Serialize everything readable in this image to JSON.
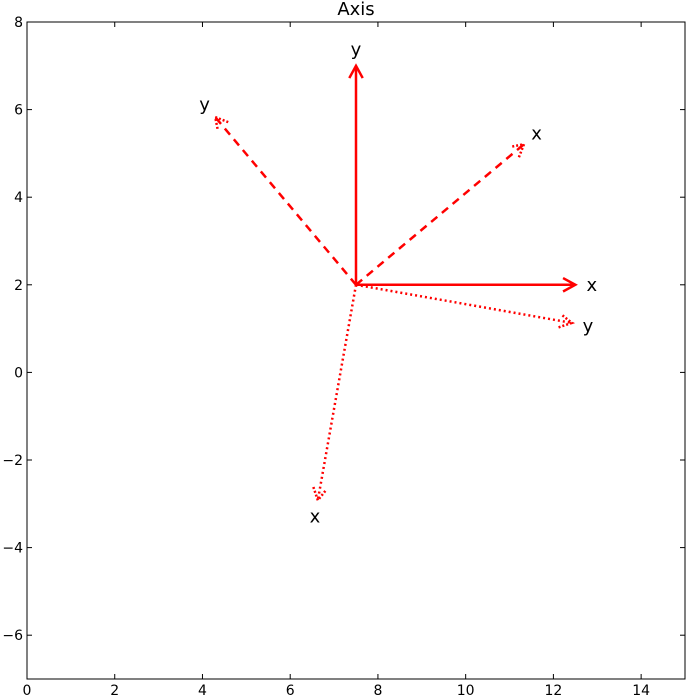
{
  "chart_data": {
    "type": "line",
    "title": "Axis",
    "xlabel": "",
    "ylabel": "",
    "xlim": [
      0,
      15
    ],
    "ylim": [
      -7,
      8
    ],
    "xticks": [
      0,
      2,
      4,
      6,
      8,
      10,
      12,
      14
    ],
    "yticks": [
      -6,
      -4,
      -2,
      0,
      2,
      4,
      6,
      8
    ],
    "xtick_labels": [
      "0",
      "2",
      "4",
      "6",
      "8",
      "10",
      "12",
      "14"
    ],
    "ytick_labels": [
      "−6",
      "−4",
      "−2",
      "0",
      "2",
      "4",
      "6",
      "8"
    ],
    "grid": false,
    "color": "#ff0000",
    "arrows": [
      {
        "frame": "solid",
        "axis": "x",
        "label": "x",
        "from": [
          7.5,
          2
        ],
        "to": [
          12.5,
          2
        ],
        "style": "solid"
      },
      {
        "frame": "solid",
        "axis": "y",
        "label": "y",
        "from": [
          7.5,
          2
        ],
        "to": [
          7.5,
          7
        ],
        "style": "solid"
      },
      {
        "frame": "rotated-40",
        "axis": "x",
        "label": "x",
        "from": [
          7.5,
          2
        ],
        "to": [
          11.33,
          5.21
        ],
        "style": "dashed"
      },
      {
        "frame": "rotated-40",
        "axis": "y",
        "label": "y",
        "from": [
          7.5,
          2
        ],
        "to": [
          4.29,
          5.83
        ],
        "style": "dashed"
      },
      {
        "frame": "rotated-260",
        "axis": "x",
        "label": "x",
        "from": [
          7.5,
          2
        ],
        "to": [
          6.63,
          -2.92
        ],
        "style": "dotted"
      },
      {
        "frame": "rotated-260",
        "axis": "y",
        "label": "y",
        "from": [
          7.5,
          2
        ],
        "to": [
          12.42,
          1.13
        ],
        "style": "dotted"
      }
    ]
  }
}
